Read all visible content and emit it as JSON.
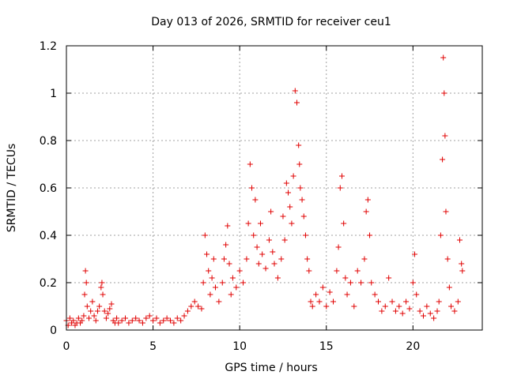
{
  "chart_data": {
    "type": "scatter",
    "title": "Day 013 of 2026, SRMTID for receiver ceu1",
    "xlabel": "GPS time / hours",
    "ylabel": "SRMTID / TECUs",
    "xlim": [
      0,
      24
    ],
    "ylim": [
      0,
      1.2
    ],
    "xticks": [
      0,
      5,
      10,
      15,
      20
    ],
    "yticks": [
      0,
      0.2,
      0.4,
      0.6,
      0.8,
      1,
      1.2
    ],
    "xtick_labels": [
      "0",
      "5",
      "10",
      "15",
      "20"
    ],
    "ytick_labels": [
      "0",
      "0.2",
      "0.4",
      "0.6",
      "0.8",
      "1",
      "1.2"
    ],
    "grid": true,
    "marker": "+",
    "series": [
      {
        "name": "SRMTID",
        "color": "#e00000",
        "points": [
          [
            0.0,
            0.04
          ],
          [
            0.1,
            0.02
          ],
          [
            0.2,
            0.05
          ],
          [
            0.3,
            0.03
          ],
          [
            0.4,
            0.04
          ],
          [
            0.5,
            0.02
          ],
          [
            0.6,
            0.03
          ],
          [
            0.7,
            0.05
          ],
          [
            0.8,
            0.03
          ],
          [
            0.9,
            0.04
          ],
          [
            1.0,
            0.06
          ],
          [
            1.05,
            0.15
          ],
          [
            1.1,
            0.25
          ],
          [
            1.15,
            0.2
          ],
          [
            1.2,
            0.1
          ],
          [
            1.3,
            0.05
          ],
          [
            1.4,
            0.08
          ],
          [
            1.5,
            0.12
          ],
          [
            1.6,
            0.06
          ],
          [
            1.7,
            0.04
          ],
          [
            1.8,
            0.08
          ],
          [
            1.9,
            0.1
          ],
          [
            2.0,
            0.18
          ],
          [
            2.05,
            0.2
          ],
          [
            2.1,
            0.15
          ],
          [
            2.2,
            0.08
          ],
          [
            2.3,
            0.05
          ],
          [
            2.4,
            0.07
          ],
          [
            2.5,
            0.09
          ],
          [
            2.6,
            0.11
          ],
          [
            2.7,
            0.04
          ],
          [
            2.8,
            0.03
          ],
          [
            2.9,
            0.05
          ],
          [
            3.0,
            0.03
          ],
          [
            3.2,
            0.04
          ],
          [
            3.4,
            0.05
          ],
          [
            3.6,
            0.03
          ],
          [
            3.8,
            0.04
          ],
          [
            4.0,
            0.05
          ],
          [
            4.2,
            0.04
          ],
          [
            4.4,
            0.03
          ],
          [
            4.6,
            0.05
          ],
          [
            4.8,
            0.06
          ],
          [
            5.0,
            0.04
          ],
          [
            5.2,
            0.05
          ],
          [
            5.4,
            0.03
          ],
          [
            5.6,
            0.04
          ],
          [
            5.8,
            0.05
          ],
          [
            6.0,
            0.04
          ],
          [
            6.2,
            0.03
          ],
          [
            6.4,
            0.05
          ],
          [
            6.6,
            0.04
          ],
          [
            6.8,
            0.06
          ],
          [
            7.0,
            0.08
          ],
          [
            7.2,
            0.1
          ],
          [
            7.4,
            0.12
          ],
          [
            7.6,
            0.1
          ],
          [
            7.8,
            0.09
          ],
          [
            7.9,
            0.2
          ],
          [
            8.0,
            0.4
          ],
          [
            8.1,
            0.32
          ],
          [
            8.2,
            0.25
          ],
          [
            8.3,
            0.15
          ],
          [
            8.4,
            0.22
          ],
          [
            8.5,
            0.3
          ],
          [
            8.6,
            0.18
          ],
          [
            8.8,
            0.12
          ],
          [
            9.0,
            0.2
          ],
          [
            9.1,
            0.3
          ],
          [
            9.2,
            0.36
          ],
          [
            9.3,
            0.44
          ],
          [
            9.4,
            0.28
          ],
          [
            9.5,
            0.15
          ],
          [
            9.6,
            0.22
          ],
          [
            9.8,
            0.18
          ],
          [
            10.0,
            0.25
          ],
          [
            10.2,
            0.2
          ],
          [
            10.4,
            0.3
          ],
          [
            10.5,
            0.45
          ],
          [
            10.6,
            0.7
          ],
          [
            10.7,
            0.6
          ],
          [
            10.8,
            0.4
          ],
          [
            10.9,
            0.55
          ],
          [
            11.0,
            0.35
          ],
          [
            11.1,
            0.28
          ],
          [
            11.2,
            0.45
          ],
          [
            11.3,
            0.32
          ],
          [
            11.5,
            0.26
          ],
          [
            11.7,
            0.38
          ],
          [
            11.8,
            0.5
          ],
          [
            11.9,
            0.33
          ],
          [
            12.0,
            0.28
          ],
          [
            12.2,
            0.22
          ],
          [
            12.4,
            0.3
          ],
          [
            12.5,
            0.48
          ],
          [
            12.6,
            0.38
          ],
          [
            12.7,
            0.62
          ],
          [
            12.8,
            0.58
          ],
          [
            12.9,
            0.52
          ],
          [
            13.0,
            0.45
          ],
          [
            13.1,
            0.65
          ],
          [
            13.2,
            1.01
          ],
          [
            13.3,
            0.96
          ],
          [
            13.4,
            0.78
          ],
          [
            13.45,
            0.7
          ],
          [
            13.5,
            0.6
          ],
          [
            13.6,
            0.55
          ],
          [
            13.7,
            0.48
          ],
          [
            13.8,
            0.4
          ],
          [
            13.9,
            0.3
          ],
          [
            14.0,
            0.25
          ],
          [
            14.1,
            0.12
          ],
          [
            14.2,
            0.1
          ],
          [
            14.4,
            0.15
          ],
          [
            14.6,
            0.12
          ],
          [
            14.8,
            0.18
          ],
          [
            15.0,
            0.1
          ],
          [
            15.2,
            0.16
          ],
          [
            15.4,
            0.12
          ],
          [
            15.6,
            0.25
          ],
          [
            15.7,
            0.35
          ],
          [
            15.8,
            0.6
          ],
          [
            15.9,
            0.65
          ],
          [
            16.0,
            0.45
          ],
          [
            16.1,
            0.22
          ],
          [
            16.2,
            0.15
          ],
          [
            16.4,
            0.2
          ],
          [
            16.6,
            0.1
          ],
          [
            16.8,
            0.25
          ],
          [
            17.0,
            0.2
          ],
          [
            17.2,
            0.3
          ],
          [
            17.3,
            0.5
          ],
          [
            17.4,
            0.55
          ],
          [
            17.5,
            0.4
          ],
          [
            17.6,
            0.2
          ],
          [
            17.8,
            0.15
          ],
          [
            18.0,
            0.12
          ],
          [
            18.2,
            0.08
          ],
          [
            18.4,
            0.1
          ],
          [
            18.6,
            0.22
          ],
          [
            18.8,
            0.12
          ],
          [
            19.0,
            0.08
          ],
          [
            19.2,
            0.1
          ],
          [
            19.4,
            0.07
          ],
          [
            19.6,
            0.12
          ],
          [
            19.8,
            0.09
          ],
          [
            20.0,
            0.2
          ],
          [
            20.1,
            0.32
          ],
          [
            20.2,
            0.15
          ],
          [
            20.4,
            0.08
          ],
          [
            20.6,
            0.06
          ],
          [
            20.8,
            0.1
          ],
          [
            21.0,
            0.07
          ],
          [
            21.2,
            0.05
          ],
          [
            21.4,
            0.08
          ],
          [
            21.5,
            0.12
          ],
          [
            21.6,
            0.4
          ],
          [
            21.7,
            0.72
          ],
          [
            21.75,
            1.15
          ],
          [
            21.8,
            1.0
          ],
          [
            21.85,
            0.82
          ],
          [
            21.9,
            0.5
          ],
          [
            22.0,
            0.3
          ],
          [
            22.1,
            0.18
          ],
          [
            22.2,
            0.1
          ],
          [
            22.4,
            0.08
          ],
          [
            22.6,
            0.12
          ],
          [
            22.7,
            0.38
          ],
          [
            22.8,
            0.28
          ],
          [
            22.85,
            0.25
          ]
        ]
      }
    ]
  }
}
